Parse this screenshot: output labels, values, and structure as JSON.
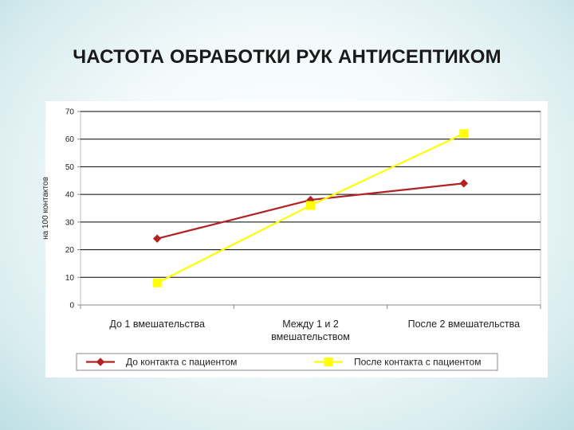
{
  "slide": {
    "title": "ЧАСТОТА ОБРАБОТКИ РУК АНТИСЕПТИКОМ"
  },
  "chart_data": {
    "type": "line",
    "title": "",
    "ylabel": "на 100 контактов",
    "xlabel": "",
    "categories": [
      [
        "До 1 вмешательства"
      ],
      [
        "Между 1 и 2",
        "вмешательством"
      ],
      [
        "После 2 вмешательства"
      ]
    ],
    "ylim": [
      0,
      70
    ],
    "yticks": [
      0,
      10,
      20,
      30,
      40,
      50,
      60,
      70
    ],
    "grid": "horizontal",
    "legend": "bottom",
    "series": [
      {
        "name": "До контакта с пациентом",
        "values": [
          24,
          38,
          44
        ],
        "color": "#b22222",
        "marker": "diamond"
      },
      {
        "name": "После контакта с пациентом",
        "values": [
          8,
          36,
          62
        ],
        "color": "#ffff00",
        "marker": "square"
      }
    ]
  }
}
